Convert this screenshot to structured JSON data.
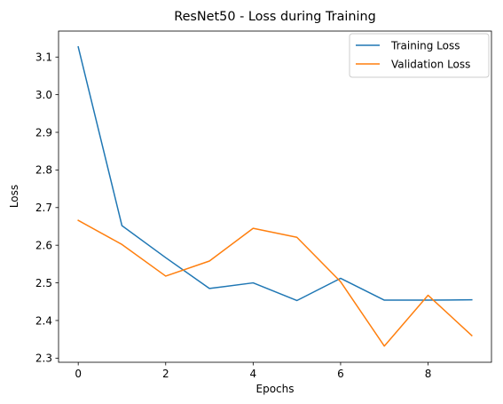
{
  "chart_data": {
    "type": "line",
    "title": "ResNet50 - Loss during Training",
    "xlabel": "Epochs",
    "ylabel": "Loss",
    "x": [
      0,
      1,
      2,
      3,
      4,
      5,
      6,
      7,
      8,
      9
    ],
    "xlim": [
      -0.45,
      9.45
    ],
    "ylim": [
      2.289,
      3.169
    ],
    "xticks": [
      0,
      2,
      4,
      6,
      8
    ],
    "xtick_labels": [
      "0",
      "2",
      "4",
      "6",
      "8"
    ],
    "yticks": [
      2.3,
      2.4,
      2.5,
      2.6,
      2.7,
      2.8,
      2.9,
      3.0,
      3.1
    ],
    "ytick_labels": [
      "2.3",
      "2.4",
      "2.5",
      "2.6",
      "2.7",
      "2.8",
      "2.9",
      "3.0",
      "3.1"
    ],
    "grid": false,
    "legend_position": "top-right",
    "series": [
      {
        "name": "Training Loss",
        "color": "#1f77b4",
        "values": [
          3.127,
          2.652,
          2.567,
          2.485,
          2.5,
          2.453,
          2.512,
          2.454,
          2.454,
          2.455
        ]
      },
      {
        "name": "Validation Loss",
        "color": "#ff7f0e",
        "values": [
          2.666,
          2.602,
          2.518,
          2.558,
          2.645,
          2.621,
          2.503,
          2.332,
          2.467,
          2.36
        ]
      }
    ]
  }
}
